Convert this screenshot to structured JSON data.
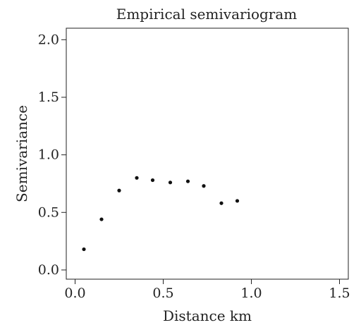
{
  "chart_data": {
    "type": "scatter",
    "title": "Empirical semivariogram",
    "xlabel": "Distance km",
    "ylabel": "Semivariance",
    "xlim": [
      -0.05,
      1.55
    ],
    "ylim": [
      -0.08,
      2.1
    ],
    "x_ticks": [
      0.0,
      0.5,
      1.0,
      1.5
    ],
    "x_tick_labels": [
      "0.0",
      "0.5",
      "1.0",
      "1.5"
    ],
    "y_ticks": [
      0.0,
      0.5,
      1.0,
      1.5,
      2.0
    ],
    "y_tick_labels": [
      "0.0",
      "0.5",
      "1.0",
      "1.5",
      "2.0"
    ],
    "grid": false,
    "legend": "none",
    "colors": {
      "points": "#111111",
      "axes": "#222222"
    },
    "series": [
      {
        "x": [
          0.05,
          0.15,
          0.25,
          0.35,
          0.44,
          0.54,
          0.64,
          0.73,
          0.83,
          0.92
        ],
        "y": [
          0.18,
          0.44,
          0.69,
          0.8,
          0.78,
          0.76,
          0.77,
          0.73,
          0.58,
          0.6
        ]
      }
    ]
  }
}
